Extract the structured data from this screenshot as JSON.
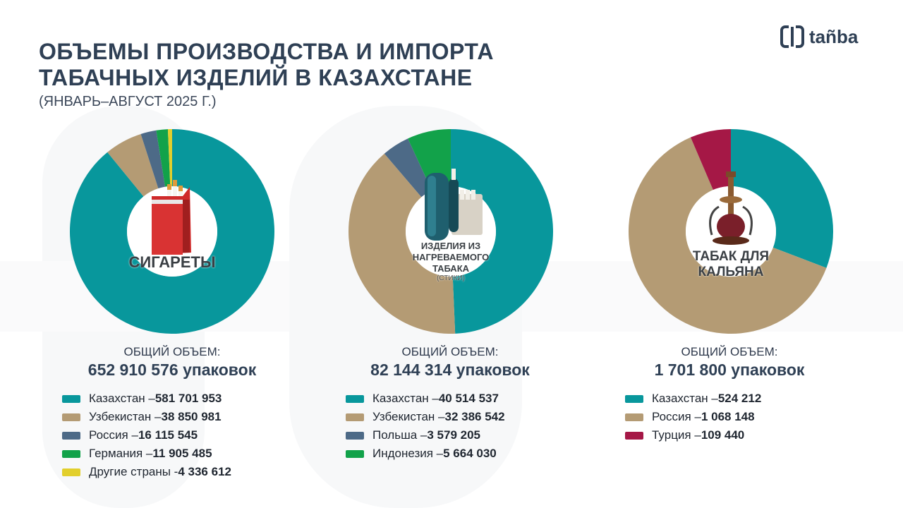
{
  "header": {
    "title_line1": "ОБЪЕМЫ ПРОИЗВОДСТВА И ИМПОРТА",
    "title_line2": "ТАБАЧНЫХ ИЗДЕЛИЙ В КАЗАХСТАНЕ",
    "subtitle": "(ЯНВАРЬ–АВГУСТ 2025 Г.)",
    "logo_text": "tañba"
  },
  "colors": {
    "kazakhstan": "#08979c",
    "tan": "#b49b74",
    "slate": "#4d6a87",
    "green": "#12a24a",
    "yellow": "#e2cf2c",
    "red": "#a51846"
  },
  "chart_data": [
    {
      "type": "pie",
      "center_label": "СИГАРЕТЫ",
      "total_label": "ОБЩИЙ ОБЪЕМ:",
      "total_value": "652 910 576 упаковок",
      "categories": [
        "Казахстан",
        "Узбекистан",
        "Россия",
        "Германия",
        "Другие страны"
      ],
      "values": [
        581701953,
        38850981,
        16115545,
        11905485,
        4336612
      ],
      "value_labels": [
        "581 701 953",
        "38 850 981",
        "16 115 545",
        "11 905 485",
        "4 336 612"
      ],
      "separators": [
        " – ",
        " – ",
        " – ",
        " – ",
        " - "
      ],
      "colors": [
        "#08979c",
        "#b49b74",
        "#4d6a87",
        "#12a24a",
        "#e2cf2c"
      ],
      "icon": "cigarette-pack-icon"
    },
    {
      "type": "pie",
      "center_label_lines": [
        "ИЗДЕЛИЯ ИЗ",
        "НАГРЕВАЕМОГО",
        "ТАБАКА"
      ],
      "center_sublabel": "(СТИКИ)",
      "total_label": "ОБЩИЙ ОБЪЕМ:",
      "total_value": "82 144 314 упаковок",
      "categories": [
        "Казахстан",
        "Узбекистан",
        "Польша",
        "Индонезия"
      ],
      "values": [
        40514537,
        32386542,
        3579205,
        5664030
      ],
      "value_labels": [
        "40 514 537",
        "32 386 542",
        "3 579 205",
        "5 664 030"
      ],
      "separators": [
        " – ",
        " – ",
        " – ",
        " – "
      ],
      "colors": [
        "#08979c",
        "#b49b74",
        "#4d6a87",
        "#12a24a"
      ],
      "slice_order": [
        0,
        1,
        2,
        3
      ],
      "icon": "heated-tobacco-device-icon"
    },
    {
      "type": "pie",
      "center_label_lines": [
        "ТАБАК ДЛЯ",
        "КАЛЬЯНА"
      ],
      "total_label": "ОБЩИЙ ОБЪЕМ:",
      "total_value": "1 701 800 упаковок",
      "categories": [
        "Казахстан",
        "Россия",
        "Турция"
      ],
      "values": [
        524212,
        1068148,
        109440
      ],
      "value_labels": [
        "524 212",
        "1 068 148",
        "109 440"
      ],
      "separators": [
        " – ",
        " – ",
        " – "
      ],
      "colors": [
        "#08979c",
        "#b49b74",
        "#a51846"
      ],
      "icon": "hookah-icon"
    }
  ]
}
